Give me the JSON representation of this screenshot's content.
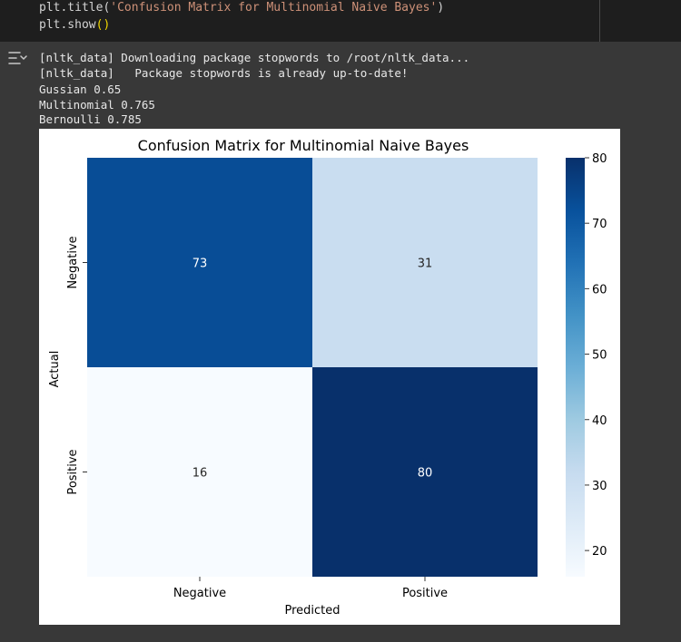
{
  "code": {
    "line1_prefix": "plt.title(",
    "line1_string": "'Confusion Matrix for Multinomial Naive Bayes'",
    "line1_suffix": ")",
    "line2_prefix": "plt.show",
    "line2_paren": "()"
  },
  "output": {
    "icon": "output-toggle-icon",
    "lines": [
      "[nltk_data] Downloading package stopwords to /root/nltk_data...",
      "[nltk_data]   Package stopwords is already up-to-date!",
      "Gussian 0.65",
      "Multinomial 0.765",
      "Bernoulli 0.785"
    ]
  },
  "chart_data": {
    "type": "heatmap",
    "title": "Confusion Matrix for Multinomial Naive Bayes",
    "xlabel": "Predicted",
    "ylabel": "Actual",
    "x_categories": [
      "Negative",
      "Positive"
    ],
    "y_categories": [
      "Negative",
      "Positive"
    ],
    "values": [
      [
        73,
        31
      ],
      [
        16,
        80
      ]
    ],
    "colormap": "Blues",
    "colorbar": {
      "min": 16,
      "max": 80,
      "ticks": [
        20,
        30,
        40,
        50,
        60,
        70,
        80
      ]
    }
  }
}
